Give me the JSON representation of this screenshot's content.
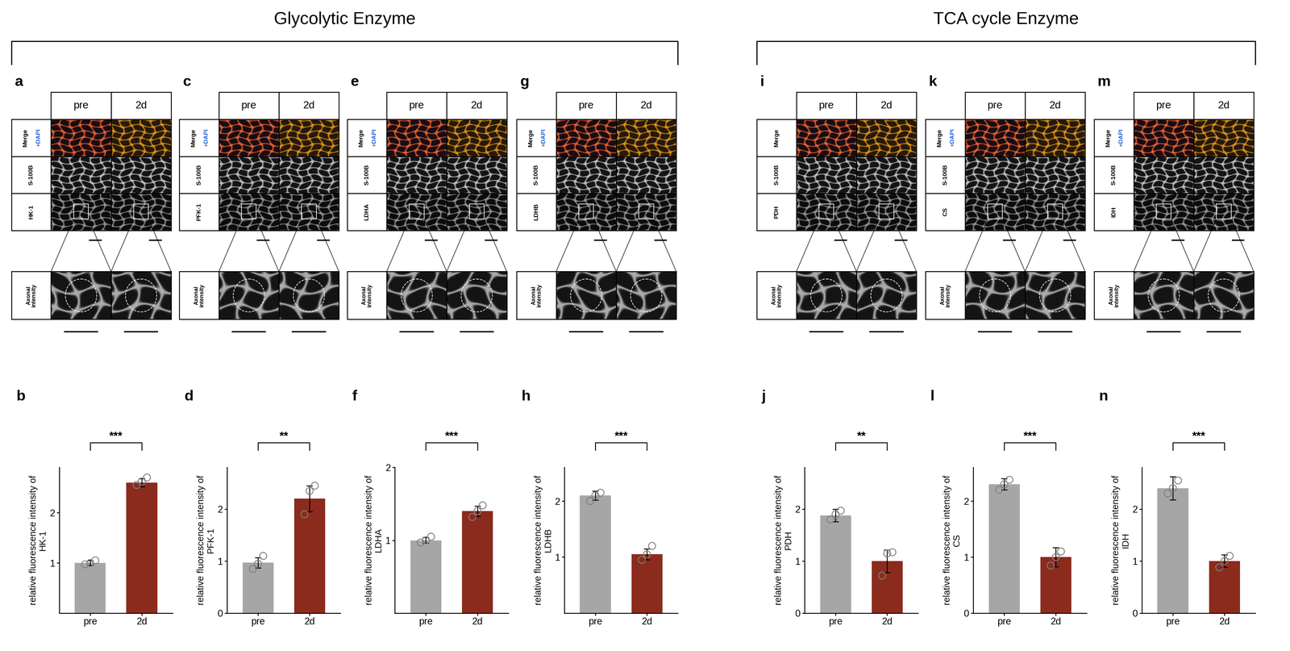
{
  "groups": [
    {
      "title": "Glycolytic Enzyme",
      "panels": [
        "a",
        "c",
        "e",
        "g"
      ]
    },
    {
      "title": "TCA cycle Enzyme",
      "panels": [
        "i",
        "k",
        "m"
      ]
    }
  ],
  "image_panels": [
    {
      "label": "a",
      "columns": [
        "pre",
        "2d"
      ],
      "merge_label": [
        "Merge",
        "+DAPI"
      ],
      "rows": [
        "S-100B",
        "HK-1"
      ],
      "zoom_label": "Axonal\nintensity"
    },
    {
      "label": "c",
      "columns": [
        "pre",
        "2d"
      ],
      "merge_label": [
        "Merge",
        "+DAPI"
      ],
      "rows": [
        "S-100B",
        "PFK-1"
      ],
      "zoom_label": "Axonal\nintensity"
    },
    {
      "label": "e",
      "columns": [
        "pre",
        "2d"
      ],
      "merge_label": [
        "Merge",
        "+DAPI"
      ],
      "rows": [
        "S-100B",
        "LDHA"
      ],
      "zoom_label": "Axonal\nintensity"
    },
    {
      "label": "g",
      "columns": [
        "pre",
        "2d"
      ],
      "merge_label": [
        "Merge",
        "+DAPI"
      ],
      "rows": [
        "S-100B",
        "LDHB"
      ],
      "zoom_label": "Axonal\nintensity"
    },
    {
      "label": "i",
      "columns": [
        "pre",
        "2d"
      ],
      "merge_label": [
        "Merge"
      ],
      "rows": [
        "S-100B",
        "PDH"
      ],
      "zoom_label": "Axonal\nintensity"
    },
    {
      "label": "k",
      "columns": [
        "pre",
        "2d"
      ],
      "merge_label": [
        "Merge",
        "+DAPI"
      ],
      "rows": [
        "S-100B",
        "CS"
      ],
      "zoom_label": "Axonal\nintensity"
    },
    {
      "label": "m",
      "columns": [
        "pre",
        "2d"
      ],
      "merge_label": [
        "Merge",
        "+DAPI"
      ],
      "rows": [
        "S-100B",
        "IDH"
      ],
      "zoom_label": "Axonal\nintensity"
    }
  ],
  "chart_data": [
    {
      "type": "bar",
      "title": "b",
      "ylabel": "relative fluorescence intensity of\nHK-1",
      "categories": [
        "pre",
        "2d"
      ],
      "values": [
        1.0,
        2.6
      ],
      "errors": [
        0.05,
        0.08
      ],
      "points": [
        [
          0.97,
          1.0,
          1.05
        ],
        [
          2.55,
          2.62,
          2.7
        ]
      ],
      "colors": [
        "#a6a6a6",
        "#8b2b1e"
      ],
      "ylim": [
        0,
        2.9
      ],
      "yticks": [
        1,
        2
      ],
      "annotation": "***"
    },
    {
      "type": "bar",
      "title": "d",
      "ylabel": "relative fluorescence intensity of\nPFK-1",
      "categories": [
        "pre",
        "2d"
      ],
      "values": [
        0.97,
        2.2
      ],
      "errors": [
        0.1,
        0.25
      ],
      "points": [
        [
          0.85,
          0.95,
          1.1
        ],
        [
          1.9,
          2.35,
          2.45
        ]
      ],
      "colors": [
        "#a6a6a6",
        "#8b2b1e"
      ],
      "ylim": [
        0,
        2.8
      ],
      "yticks": [
        0,
        1,
        2
      ],
      "annotation": "**"
    },
    {
      "type": "bar",
      "title": "f",
      "ylabel": "relative fluorescence intensity of\nLDHA",
      "categories": [
        "pre",
        "2d"
      ],
      "values": [
        1.0,
        1.4
      ],
      "errors": [
        0.04,
        0.07
      ],
      "points": [
        [
          0.97,
          1.0,
          1.05
        ],
        [
          1.32,
          1.4,
          1.48
        ]
      ],
      "colors": [
        "#a6a6a6",
        "#8b2b1e"
      ],
      "ylim": [
        0,
        2
      ],
      "yticks": [
        1,
        2
      ],
      "annotation": "***"
    },
    {
      "type": "bar",
      "title": "h",
      "ylabel": "relative fluorescence intensity of\nLDHB",
      "categories": [
        "pre",
        "2d"
      ],
      "values": [
        2.1,
        1.05
      ],
      "errors": [
        0.08,
        0.1
      ],
      "points": [
        [
          2.0,
          2.1,
          2.15
        ],
        [
          0.95,
          1.05,
          1.2
        ]
      ],
      "colors": [
        "#a6a6a6",
        "#8b2b1e"
      ],
      "ylim": [
        0,
        2.6
      ],
      "yticks": [
        1,
        2
      ],
      "annotation": "***"
    },
    {
      "type": "bar",
      "title": "j",
      "ylabel": "relative fluorescence intensity of\nPDH",
      "categories": [
        "pre",
        "2d"
      ],
      "values": [
        1.88,
        1.0
      ],
      "errors": [
        0.12,
        0.22
      ],
      "points": [
        [
          1.8,
          1.9,
          1.97
        ],
        [
          0.72,
          1.15,
          1.17
        ]
      ],
      "colors": [
        "#a6a6a6",
        "#8b2b1e"
      ],
      "ylim": [
        0,
        2.8
      ],
      "yticks": [
        0,
        1,
        2
      ],
      "annotation": "**"
    },
    {
      "type": "bar",
      "title": "l",
      "ylabel": "relative fluorescence intensity of\nCS",
      "categories": [
        "pre",
        "2d"
      ],
      "values": [
        2.3,
        1.0
      ],
      "errors": [
        0.1,
        0.17
      ],
      "points": [
        [
          2.2,
          2.3,
          2.38
        ],
        [
          0.85,
          1.0,
          1.1
        ]
      ],
      "colors": [
        "#a6a6a6",
        "#8b2b1e"
      ],
      "ylim": [
        0,
        2.6
      ],
      "yticks": [
        0,
        1,
        2
      ],
      "annotation": "***"
    },
    {
      "type": "bar",
      "title": "n",
      "ylabel": "relative fluorescence intensity of\nIDH",
      "categories": [
        "pre",
        "2d"
      ],
      "values": [
        2.4,
        1.0
      ],
      "errors": [
        0.22,
        0.12
      ],
      "points": [
        [
          2.3,
          2.4,
          2.55
        ],
        [
          0.88,
          1.0,
          1.1
        ]
      ],
      "colors": [
        "#a6a6a6",
        "#8b2b1e"
      ],
      "ylim": [
        0,
        2.8
      ],
      "yticks": [
        0,
        1,
        2
      ],
      "annotation": "***"
    }
  ]
}
